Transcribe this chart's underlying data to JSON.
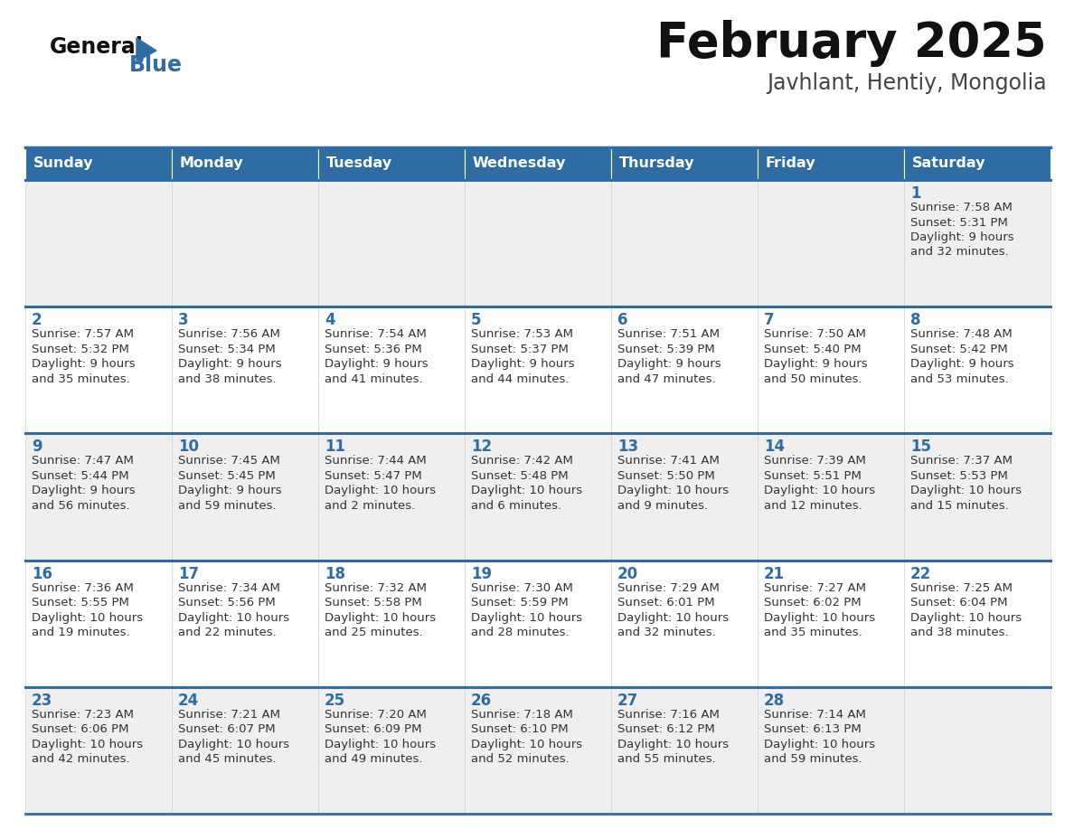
{
  "title": "February 2025",
  "subtitle": "Javhlant, Hentiy, Mongolia",
  "header_bg": "#2E6DA4",
  "header_text": "#FFFFFF",
  "cell_bg_odd": "#EFEFEF",
  "cell_bg_even": "#FFFFFF",
  "day_number_color": "#2E6DA4",
  "info_text_color": "#333333",
  "border_color": "#2E6DA4",
  "days_of_week": [
    "Sunday",
    "Monday",
    "Tuesday",
    "Wednesday",
    "Thursday",
    "Friday",
    "Saturday"
  ],
  "weeks": [
    [
      {
        "day": null,
        "info": null
      },
      {
        "day": null,
        "info": null
      },
      {
        "day": null,
        "info": null
      },
      {
        "day": null,
        "info": null
      },
      {
        "day": null,
        "info": null
      },
      {
        "day": null,
        "info": null
      },
      {
        "day": "1",
        "info": [
          "Sunrise: 7:58 AM",
          "Sunset: 5:31 PM",
          "Daylight: 9 hours",
          "and 32 minutes."
        ]
      }
    ],
    [
      {
        "day": "2",
        "info": [
          "Sunrise: 7:57 AM",
          "Sunset: 5:32 PM",
          "Daylight: 9 hours",
          "and 35 minutes."
        ]
      },
      {
        "day": "3",
        "info": [
          "Sunrise: 7:56 AM",
          "Sunset: 5:34 PM",
          "Daylight: 9 hours",
          "and 38 minutes."
        ]
      },
      {
        "day": "4",
        "info": [
          "Sunrise: 7:54 AM",
          "Sunset: 5:36 PM",
          "Daylight: 9 hours",
          "and 41 minutes."
        ]
      },
      {
        "day": "5",
        "info": [
          "Sunrise: 7:53 AM",
          "Sunset: 5:37 PM",
          "Daylight: 9 hours",
          "and 44 minutes."
        ]
      },
      {
        "day": "6",
        "info": [
          "Sunrise: 7:51 AM",
          "Sunset: 5:39 PM",
          "Daylight: 9 hours",
          "and 47 minutes."
        ]
      },
      {
        "day": "7",
        "info": [
          "Sunrise: 7:50 AM",
          "Sunset: 5:40 PM",
          "Daylight: 9 hours",
          "and 50 minutes."
        ]
      },
      {
        "day": "8",
        "info": [
          "Sunrise: 7:48 AM",
          "Sunset: 5:42 PM",
          "Daylight: 9 hours",
          "and 53 minutes."
        ]
      }
    ],
    [
      {
        "day": "9",
        "info": [
          "Sunrise: 7:47 AM",
          "Sunset: 5:44 PM",
          "Daylight: 9 hours",
          "and 56 minutes."
        ]
      },
      {
        "day": "10",
        "info": [
          "Sunrise: 7:45 AM",
          "Sunset: 5:45 PM",
          "Daylight: 9 hours",
          "and 59 minutes."
        ]
      },
      {
        "day": "11",
        "info": [
          "Sunrise: 7:44 AM",
          "Sunset: 5:47 PM",
          "Daylight: 10 hours",
          "and 2 minutes."
        ]
      },
      {
        "day": "12",
        "info": [
          "Sunrise: 7:42 AM",
          "Sunset: 5:48 PM",
          "Daylight: 10 hours",
          "and 6 minutes."
        ]
      },
      {
        "day": "13",
        "info": [
          "Sunrise: 7:41 AM",
          "Sunset: 5:50 PM",
          "Daylight: 10 hours",
          "and 9 minutes."
        ]
      },
      {
        "day": "14",
        "info": [
          "Sunrise: 7:39 AM",
          "Sunset: 5:51 PM",
          "Daylight: 10 hours",
          "and 12 minutes."
        ]
      },
      {
        "day": "15",
        "info": [
          "Sunrise: 7:37 AM",
          "Sunset: 5:53 PM",
          "Daylight: 10 hours",
          "and 15 minutes."
        ]
      }
    ],
    [
      {
        "day": "16",
        "info": [
          "Sunrise: 7:36 AM",
          "Sunset: 5:55 PM",
          "Daylight: 10 hours",
          "and 19 minutes."
        ]
      },
      {
        "day": "17",
        "info": [
          "Sunrise: 7:34 AM",
          "Sunset: 5:56 PM",
          "Daylight: 10 hours",
          "and 22 minutes."
        ]
      },
      {
        "day": "18",
        "info": [
          "Sunrise: 7:32 AM",
          "Sunset: 5:58 PM",
          "Daylight: 10 hours",
          "and 25 minutes."
        ]
      },
      {
        "day": "19",
        "info": [
          "Sunrise: 7:30 AM",
          "Sunset: 5:59 PM",
          "Daylight: 10 hours",
          "and 28 minutes."
        ]
      },
      {
        "day": "20",
        "info": [
          "Sunrise: 7:29 AM",
          "Sunset: 6:01 PM",
          "Daylight: 10 hours",
          "and 32 minutes."
        ]
      },
      {
        "day": "21",
        "info": [
          "Sunrise: 7:27 AM",
          "Sunset: 6:02 PM",
          "Daylight: 10 hours",
          "and 35 minutes."
        ]
      },
      {
        "day": "22",
        "info": [
          "Sunrise: 7:25 AM",
          "Sunset: 6:04 PM",
          "Daylight: 10 hours",
          "and 38 minutes."
        ]
      }
    ],
    [
      {
        "day": "23",
        "info": [
          "Sunrise: 7:23 AM",
          "Sunset: 6:06 PM",
          "Daylight: 10 hours",
          "and 42 minutes."
        ]
      },
      {
        "day": "24",
        "info": [
          "Sunrise: 7:21 AM",
          "Sunset: 6:07 PM",
          "Daylight: 10 hours",
          "and 45 minutes."
        ]
      },
      {
        "day": "25",
        "info": [
          "Sunrise: 7:20 AM",
          "Sunset: 6:09 PM",
          "Daylight: 10 hours",
          "and 49 minutes."
        ]
      },
      {
        "day": "26",
        "info": [
          "Sunrise: 7:18 AM",
          "Sunset: 6:10 PM",
          "Daylight: 10 hours",
          "and 52 minutes."
        ]
      },
      {
        "day": "27",
        "info": [
          "Sunrise: 7:16 AM",
          "Sunset: 6:12 PM",
          "Daylight: 10 hours",
          "and 55 minutes."
        ]
      },
      {
        "day": "28",
        "info": [
          "Sunrise: 7:14 AM",
          "Sunset: 6:13 PM",
          "Daylight: 10 hours",
          "and 59 minutes."
        ]
      },
      {
        "day": null,
        "info": null
      }
    ]
  ]
}
